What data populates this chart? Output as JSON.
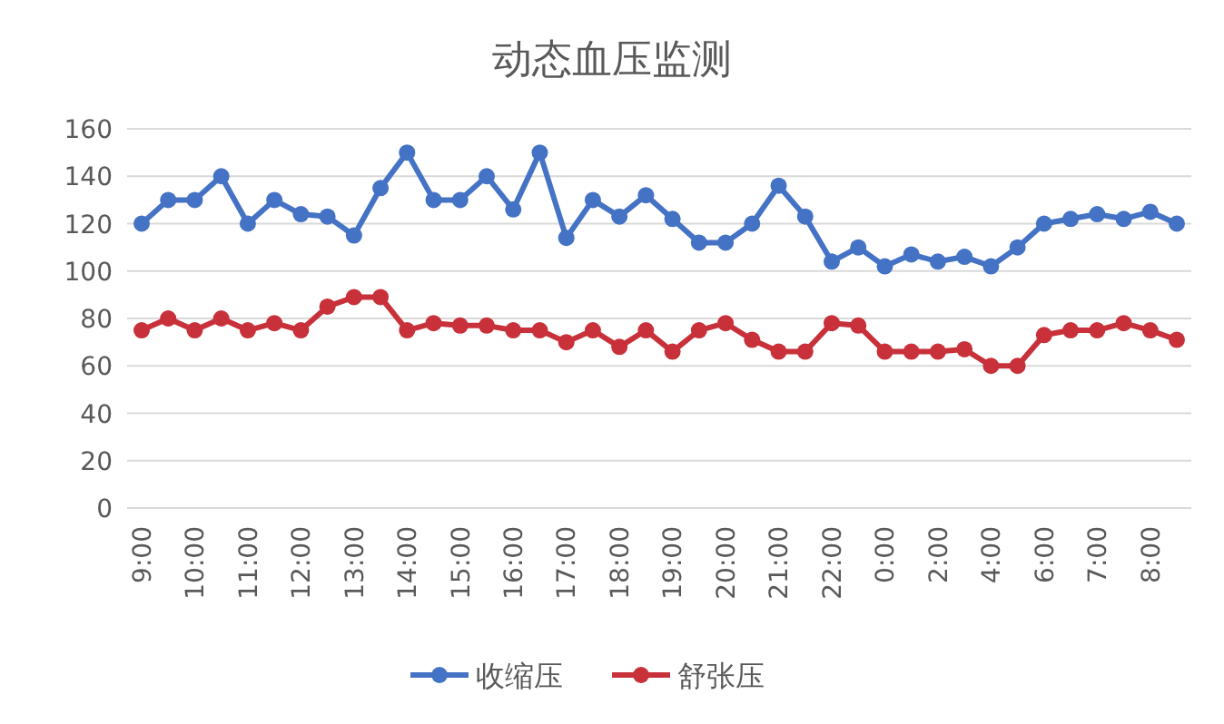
{
  "chart_data": {
    "type": "line",
    "title": "动态血压监测",
    "categories": [
      "9:00",
      null,
      "10:00",
      null,
      "11:00",
      null,
      "12:00",
      null,
      "13:00",
      null,
      "14:00",
      null,
      "15:00",
      null,
      "16:00",
      null,
      "17:00",
      null,
      "18:00",
      null,
      "19:00",
      null,
      "20:00",
      null,
      "21:00",
      null,
      "22:00",
      null,
      "0:00",
      null,
      "2:00",
      null,
      "4:00",
      null,
      "6:00",
      null,
      "7:00",
      null,
      "8:00",
      null
    ],
    "series": [
      {
        "name": "收缩压",
        "color": "#4472c4",
        "values": [
          120,
          130,
          130,
          140,
          120,
          130,
          124,
          123,
          115,
          135,
          150,
          130,
          130,
          140,
          126,
          150,
          114,
          130,
          123,
          132,
          122,
          112,
          112,
          120,
          136,
          123,
          104,
          110,
          102,
          107,
          104,
          106,
          102,
          110,
          120,
          122,
          124,
          122,
          125,
          120
        ]
      },
      {
        "name": "舒张压",
        "color": "#c8303a",
        "values": [
          75,
          80,
          75,
          80,
          75,
          78,
          75,
          85,
          89,
          89,
          75,
          78,
          77,
          77,
          75,
          75,
          70,
          75,
          68,
          75,
          66,
          75,
          78,
          71,
          66,
          66,
          78,
          77,
          66,
          66,
          66,
          67,
          60,
          60,
          73,
          75,
          75,
          78,
          75,
          71
        ]
      }
    ],
    "ylim": [
      0,
      160
    ],
    "yticks": [
      0,
      20,
      40,
      60,
      80,
      100,
      120,
      140,
      160
    ],
    "grid": "y",
    "marker": "circle",
    "line_style": "solid",
    "legend": "bottom"
  }
}
